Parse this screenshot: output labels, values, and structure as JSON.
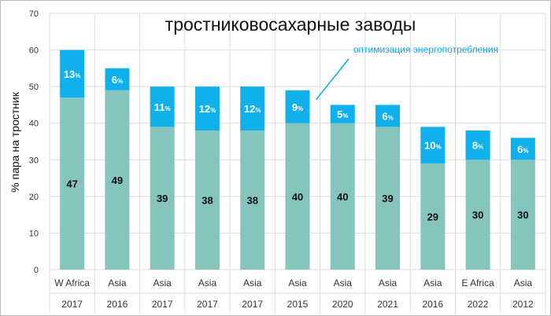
{
  "chart_data": {
    "type": "bar",
    "stacked": true,
    "title": "тростниковосахарные заводы",
    "ylabel": "% пара на тростник",
    "xlabel": "",
    "ylim": [
      0,
      70
    ],
    "yticks": [
      0,
      10,
      20,
      30,
      40,
      50,
      60,
      70
    ],
    "grid": true,
    "categories": [
      {
        "region": "W Africa",
        "year": "2017"
      },
      {
        "region": "Asia",
        "year": "2016"
      },
      {
        "region": "Asia",
        "year": "2017"
      },
      {
        "region": "Asia",
        "year": "2017"
      },
      {
        "region": "Asia",
        "year": "2017"
      },
      {
        "region": "Asia",
        "year": "2015"
      },
      {
        "region": "Asia",
        "year": "2020"
      },
      {
        "region": "Asia",
        "year": "2021"
      },
      {
        "region": "Asia",
        "year": "2016"
      },
      {
        "region": "E Africa",
        "year": "2022"
      },
      {
        "region": "Asia",
        "year": "2012"
      }
    ],
    "series": [
      {
        "values": [
          47,
          49,
          39,
          38,
          38,
          40,
          40,
          39,
          29,
          30,
          30
        ],
        "color": "#86c5bd"
      },
      {
        "values": [
          13,
          6,
          11,
          12,
          12,
          9,
          5,
          6,
          10,
          8,
          6
        ],
        "color": "#10b0ec",
        "label_suffix": "%"
      }
    ],
    "annotation": {
      "text": "оптимизация энергопотребления",
      "color": "#10a8e0",
      "points_to_index": 5
    }
  }
}
